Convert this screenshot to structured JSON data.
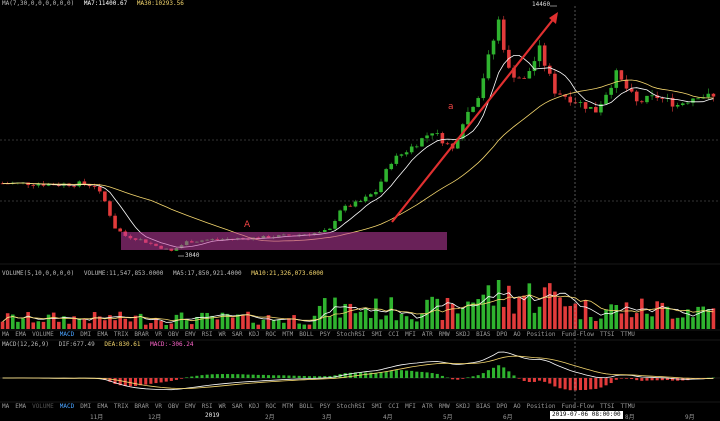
{
  "main_header": {
    "ma_label": "MA(7,30,0,0,0,0,0,0)",
    "ma7": "MA7:11400.67",
    "ma30": "MA30:10293.56",
    "ma7_color": "#ffffff",
    "ma30_color": "#f5d76e"
  },
  "volume_header": {
    "label": "VOLUME(5,10,0,0,0,0)",
    "volume": "VOLUME:11,547,853.0000",
    "ma5": "MA5:17,850,921.4000",
    "ma10": "MA10:21,326,073.6000",
    "ma10_color": "#f5d76e"
  },
  "macd_header": {
    "label": "MACD(12,26,9)",
    "dif": "DIF:677.49",
    "dea": "DEA:830.61",
    "macd": "MACD:-306.24",
    "dea_color": "#f5d76e",
    "macd_color": "#ff66cc"
  },
  "indicator_tabs_1": [
    "MA",
    "EMA",
    "VOLUME",
    "MACD",
    "DMI",
    "EMA",
    "TRIX",
    "BRAR",
    "VR",
    "OBV",
    "EMV",
    "RSI",
    "WR",
    "SAR",
    "KDJ",
    "ROC",
    "MTM",
    "BOLL",
    "PSY",
    "StochRSI",
    "SMI",
    "CCI",
    "MFI",
    "ATR",
    "RMW",
    "SKDJ",
    "BIAS",
    "DPO",
    "AO",
    "Position",
    "Fund-Flow",
    "TTSI",
    "TTMU"
  ],
  "indicator_tabs_2": [
    "MA",
    "EMA",
    "VOLUME",
    "MACD",
    "DMI",
    "EMA",
    "TRIX",
    "BRAR",
    "VR",
    "OBV",
    "EMV",
    "RSI",
    "WR",
    "SAR",
    "KDJ",
    "ROC",
    "MTM",
    "BOLL",
    "PSY",
    "StochRSI",
    "SMI",
    "CCI",
    "MFI",
    "ATR",
    "RMW",
    "SKDJ",
    "BIAS",
    "DPO",
    "AO",
    "Position",
    "Fund-Flow",
    "TTSI",
    "TTMU"
  ],
  "time_axis": {
    "labels": [
      "11月",
      "12月",
      "2019",
      "2月",
      "3月",
      "4月",
      "5月",
      "6月",
      "2019-07-06 08:00:00",
      "8月",
      "9月"
    ],
    "cursor_time": "2019-07-06 08:00:00"
  },
  "annotations": {
    "high_label": "14460",
    "low_label": "3040",
    "box_label": "A",
    "arrow_label": "a",
    "arrow_color": "#e03030",
    "box_color": "#c03ca0"
  },
  "chart_data": {
    "type": "candlestick",
    "title": "",
    "series": [
      {
        "name": "MA7",
        "value": 11400.67
      },
      {
        "name": "MA30",
        "value": 10293.56
      }
    ],
    "price_path": [
      [
        0,
        6400
      ],
      [
        5,
        6400
      ],
      [
        10,
        6350
      ],
      [
        15,
        6380
      ],
      [
        18,
        6300
      ],
      [
        20,
        5500
      ],
      [
        22,
        4200
      ],
      [
        24,
        3800
      ],
      [
        27,
        3600
      ],
      [
        30,
        3300
      ],
      [
        33,
        3040
      ],
      [
        36,
        3500
      ],
      [
        40,
        3600
      ],
      [
        45,
        3650
      ],
      [
        50,
        3700
      ],
      [
        55,
        3800
      ],
      [
        60,
        3900
      ],
      [
        62,
        3950
      ],
      [
        64,
        4100
      ],
      [
        66,
        5100
      ],
      [
        68,
        5300
      ],
      [
        70,
        5500
      ],
      [
        73,
        6000
      ],
      [
        76,
        7500
      ],
      [
        80,
        8200
      ],
      [
        84,
        9000
      ],
      [
        88,
        8100
      ],
      [
        90,
        9500
      ],
      [
        93,
        10800
      ],
      [
        96,
        13500
      ],
      [
        97,
        14460
      ],
      [
        99,
        12000
      ],
      [
        102,
        11500
      ],
      [
        105,
        13000
      ],
      [
        108,
        11000
      ],
      [
        112,
        10500
      ],
      [
        116,
        10000
      ],
      [
        120,
        11800
      ],
      [
        124,
        10400
      ],
      [
        128,
        10700
      ],
      [
        132,
        10300
      ],
      [
        136,
        10800
      ],
      [
        140,
        10600
      ]
    ],
    "high": 14460,
    "low": 3040,
    "ylim": [
      2500,
      15000
    ],
    "volume": {
      "value": 11547853,
      "ma5": 17850921.4,
      "ma10": 21326073.6
    },
    "macd": {
      "dif": 677.49,
      "dea": 830.61,
      "macd": -306.24
    },
    "legend": "top-left",
    "grid": false
  }
}
